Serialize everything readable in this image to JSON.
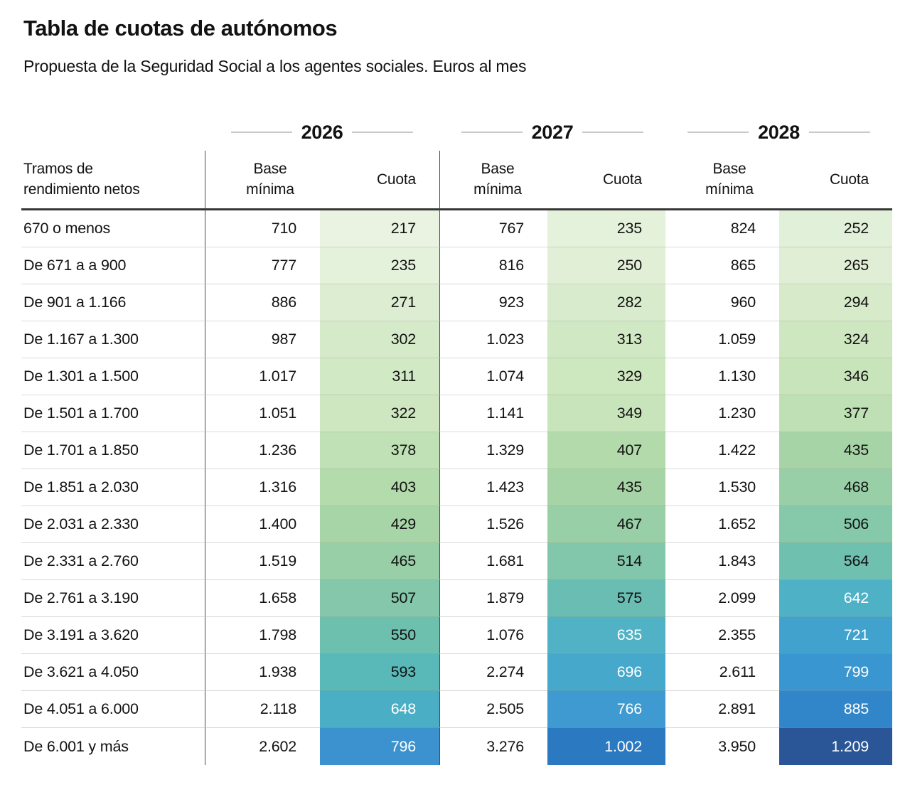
{
  "chart_data": {
    "type": "table",
    "title": "Tabla de cuotas de autónomos",
    "subtitle": "Propuesta de la Seguridad Social a los agentes sociales. Euros al mes",
    "unit": "Euros al mes",
    "row_header": "Tramos de rendimiento netos",
    "year_groups": [
      "2026",
      "2027",
      "2028"
    ],
    "sub_columns": [
      "Base mínima",
      "Cuota"
    ],
    "rows": [
      {
        "tramo": "670 o menos",
        "years": [
          {
            "base": "710",
            "cuota": "217",
            "cuota_color": "#eaf3e1",
            "cuota_text": "dark"
          },
          {
            "base": "767",
            "cuota": "235",
            "cuota_color": "#e4f1db",
            "cuota_text": "dark"
          },
          {
            "base": "824",
            "cuota": "252",
            "cuota_color": "#e1f0d8",
            "cuota_text": "dark"
          }
        ]
      },
      {
        "tramo": "De 671 a a 900",
        "years": [
          {
            "base": "777",
            "cuota": "235",
            "cuota_color": "#e4f1db",
            "cuota_text": "dark"
          },
          {
            "base": "816",
            "cuota": "250",
            "cuota_color": "#e1efd7",
            "cuota_text": "dark"
          },
          {
            "base": "865",
            "cuota": "265",
            "cuota_color": "#dfeed5",
            "cuota_text": "dark"
          }
        ]
      },
      {
        "tramo": "De 901 a 1.166",
        "years": [
          {
            "base": "886",
            "cuota": "271",
            "cuota_color": "#dcedd1",
            "cuota_text": "dark"
          },
          {
            "base": "923",
            "cuota": "282",
            "cuota_color": "#d8ebcc",
            "cuota_text": "dark"
          },
          {
            "base": "960",
            "cuota": "294",
            "cuota_color": "#d7eac9",
            "cuota_text": "dark"
          }
        ]
      },
      {
        "tramo": "De 1.167 a 1.300",
        "years": [
          {
            "base": "987",
            "cuota": "302",
            "cuota_color": "#d5eac8",
            "cuota_text": "dark"
          },
          {
            "base": "1.023",
            "cuota": "313",
            "cuota_color": "#d1e8c4",
            "cuota_text": "dark"
          },
          {
            "base": "1.059",
            "cuota": "324",
            "cuota_color": "#cfe7c0",
            "cuota_text": "dark"
          }
        ]
      },
      {
        "tramo": "De 1.301 a 1.500",
        "years": [
          {
            "base": "1.017",
            "cuota": "311",
            "cuota_color": "#d2e9c5",
            "cuota_text": "dark"
          },
          {
            "base": "1.074",
            "cuota": "329",
            "cuota_color": "#cde7bf",
            "cuota_text": "dark"
          },
          {
            "base": "1.130",
            "cuota": "346",
            "cuota_color": "#c8e4ba",
            "cuota_text": "dark"
          }
        ]
      },
      {
        "tramo": "De 1.501 a 1.700",
        "years": [
          {
            "base": "1.051",
            "cuota": "322",
            "cuota_color": "#cfe7c1",
            "cuota_text": "dark"
          },
          {
            "base": "1.141",
            "cuota": "349",
            "cuota_color": "#c7e4ba",
            "cuota_text": "dark"
          },
          {
            "base": "1.230",
            "cuota": "377",
            "cuota_color": "#bfe0b4",
            "cuota_text": "dark"
          }
        ]
      },
      {
        "tramo": "De 1.701 a 1.850",
        "years": [
          {
            "base": "1.236",
            "cuota": "378",
            "cuota_color": "#c0e0b5",
            "cuota_text": "dark"
          },
          {
            "base": "1.329",
            "cuota": "407",
            "cuota_color": "#b3daab",
            "cuota_text": "dark"
          },
          {
            "base": "1.422",
            "cuota": "435",
            "cuota_color": "#a7d4a7",
            "cuota_text": "dark"
          }
        ]
      },
      {
        "tramo": "De 1.851 a 2.030",
        "years": [
          {
            "base": "1.316",
            "cuota": "403",
            "cuota_color": "#b4dbac",
            "cuota_text": "dark"
          },
          {
            "base": "1.423",
            "cuota": "435",
            "cuota_color": "#a7d4a7",
            "cuota_text": "dark"
          },
          {
            "base": "1.530",
            "cuota": "468",
            "cuota_color": "#98cfa6",
            "cuota_text": "dark"
          }
        ]
      },
      {
        "tramo": "De 2.031 a 2.330",
        "years": [
          {
            "base": "1.400",
            "cuota": "429",
            "cuota_color": "#a8d5a7",
            "cuota_text": "dark"
          },
          {
            "base": "1.526",
            "cuota": "467",
            "cuota_color": "#98cfa6",
            "cuota_text": "dark"
          },
          {
            "base": "1.652",
            "cuota": "506",
            "cuota_color": "#85c8aa",
            "cuota_text": "dark"
          }
        ]
      },
      {
        "tramo": "De 2.331 a 2.760",
        "years": [
          {
            "base": "1.519",
            "cuota": "465",
            "cuota_color": "#98cfa6",
            "cuota_text": "dark"
          },
          {
            "base": "1.681",
            "cuota": "514",
            "cuota_color": "#82c6ab",
            "cuota_text": "dark"
          },
          {
            "base": "1.843",
            "cuota": "564",
            "cuota_color": "#70c0b0",
            "cuota_text": "dark"
          }
        ]
      },
      {
        "tramo": "De 2.761 a 3.190",
        "years": [
          {
            "base": "1.658",
            "cuota": "507",
            "cuota_color": "#84c7aa",
            "cuota_text": "dark"
          },
          {
            "base": "1.879",
            "cuota": "575",
            "cuota_color": "#69bdb3",
            "cuota_text": "dark"
          },
          {
            "base": "2.099",
            "cuota": "642",
            "cuota_color": "#4fb1c6",
            "cuota_text": "light"
          }
        ]
      },
      {
        "tramo": "De 3.191 a 3.620",
        "years": [
          {
            "base": "1.798",
            "cuota": "550",
            "cuota_color": "#6ec0ae",
            "cuota_text": "dark"
          },
          {
            "base": "1.076",
            "cuota": "635",
            "cuota_color": "#52b2c5",
            "cuota_text": "light"
          },
          {
            "base": "2.355",
            "cuota": "721",
            "cuota_color": "#40a2cd",
            "cuota_text": "light"
          }
        ]
      },
      {
        "tramo": "De 3.621 a 4.050",
        "years": [
          {
            "base": "1.938",
            "cuota": "593",
            "cuota_color": "#59b8b8",
            "cuota_text": "dark"
          },
          {
            "base": "2.274",
            "cuota": "696",
            "cuota_color": "#46a8cb",
            "cuota_text": "light"
          },
          {
            "base": "2.611",
            "cuota": "799",
            "cuota_color": "#3a96d0",
            "cuota_text": "light"
          }
        ]
      },
      {
        "tramo": "De 4.051 a 6.000",
        "years": [
          {
            "base": "2.118",
            "cuota": "648",
            "cuota_color": "#4aaec4",
            "cuota_text": "light"
          },
          {
            "base": "2.505",
            "cuota": "766",
            "cuota_color": "#3e9ad1",
            "cuota_text": "light"
          },
          {
            "base": "2.891",
            "cuota": "885",
            "cuota_color": "#3186ca",
            "cuota_text": "light"
          }
        ]
      },
      {
        "tramo": "De 6.001 y más",
        "years": [
          {
            "base": "2.602",
            "cuota": "796",
            "cuota_color": "#3b92ce",
            "cuota_text": "light"
          },
          {
            "base": "3.276",
            "cuota": "1.002",
            "cuota_color": "#2b79c1",
            "cuota_text": "light"
          },
          {
            "base": "3.950",
            "cuota": "1.209",
            "cuota_color": "#2a5697",
            "cuota_text": "light"
          }
        ]
      }
    ],
    "colors": {
      "text": "#121212",
      "light_cell_text": "#ffffff",
      "header_rule": "#373737",
      "row_line": "#dadada",
      "vertical_rule": "#4a4a4a",
      "year_dash_line": "#c9c9c9",
      "scale_low": "#eaf3e1",
      "scale_high": "#2a5697"
    }
  }
}
